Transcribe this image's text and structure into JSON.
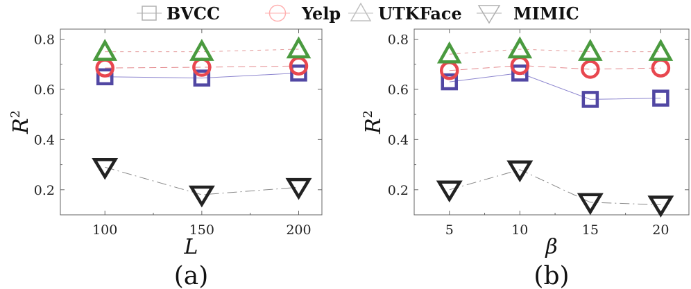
{
  "legend": {
    "items": [
      {
        "label": "BVCC",
        "marker": "square",
        "color": "#b0b0b0"
      },
      {
        "label": "Yelp",
        "marker": "circle",
        "color": "#ffb0b0"
      },
      {
        "label": "UTKFace",
        "marker": "triangle-up",
        "color": "#c0c0c0"
      },
      {
        "label": "MIMIC",
        "marker": "triangle-down",
        "color": "#b0b0b0"
      }
    ]
  },
  "chart_data": [
    {
      "type": "line",
      "panel_label": "(a)",
      "xlabel": "L",
      "ylabel": "R",
      "ylabel_sup": "2",
      "x": [
        100,
        150,
        200
      ],
      "xticks": [
        100,
        150,
        200
      ],
      "xlim": [
        77,
        212
      ],
      "ylim": [
        0.1,
        0.84
      ],
      "yticks": [
        0.2,
        0.4,
        0.6,
        0.8
      ],
      "ytick_labels": [
        "0.2",
        "0.4",
        "0.6",
        "0.8"
      ],
      "series": [
        {
          "name": "BVCC",
          "values": [
            0.65,
            0.645,
            0.665
          ],
          "marker": "square",
          "color": "#5147a3",
          "line_color": "#8d86cf",
          "dash": ""
        },
        {
          "name": "Yelp",
          "values": [
            0.685,
            0.688,
            0.693
          ],
          "marker": "circle",
          "color": "#e8474f",
          "line_color": "#e3888c",
          "dash": "10,6"
        },
        {
          "name": "UTKFace",
          "values": [
            0.75,
            0.75,
            0.76
          ],
          "marker": "triangle-up",
          "color": "#4a9a3f",
          "line_color": "#e39a9a",
          "dash": "5,6"
        },
        {
          "name": "MIMIC",
          "values": [
            0.29,
            0.18,
            0.21
          ],
          "marker": "triangle-down",
          "color": "#222222",
          "line_color": "#888888",
          "dash": "14,5,2,5"
        }
      ]
    },
    {
      "type": "line",
      "panel_label": "(b)",
      "xlabel": "β",
      "ylabel": "R",
      "ylabel_sup": "2",
      "x": [
        5,
        10,
        15,
        20
      ],
      "xticks": [
        5,
        10,
        15,
        20
      ],
      "xlim": [
        2.5,
        22
      ],
      "ylim": [
        0.1,
        0.84
      ],
      "yticks": [
        0.2,
        0.4,
        0.6,
        0.8
      ],
      "ytick_labels": [
        "0.2",
        "0.4",
        "0.6",
        "0.8"
      ],
      "series": [
        {
          "name": "BVCC",
          "values": [
            0.63,
            0.665,
            0.56,
            0.565
          ],
          "marker": "square",
          "color": "#5147a3",
          "line_color": "#8d86cf",
          "dash": ""
        },
        {
          "name": "Yelp",
          "values": [
            0.675,
            0.695,
            0.68,
            0.685
          ],
          "marker": "circle",
          "color": "#e8474f",
          "line_color": "#e3888c",
          "dash": "10,6"
        },
        {
          "name": "UTKFace",
          "values": [
            0.74,
            0.76,
            0.75,
            0.75
          ],
          "marker": "triangle-up",
          "color": "#4a9a3f",
          "line_color": "#e39a9a",
          "dash": "5,6"
        },
        {
          "name": "MIMIC",
          "values": [
            0.2,
            0.28,
            0.15,
            0.14
          ],
          "marker": "triangle-down",
          "color": "#222222",
          "line_color": "#888888",
          "dash": "14,5,2,5"
        }
      ]
    }
  ]
}
